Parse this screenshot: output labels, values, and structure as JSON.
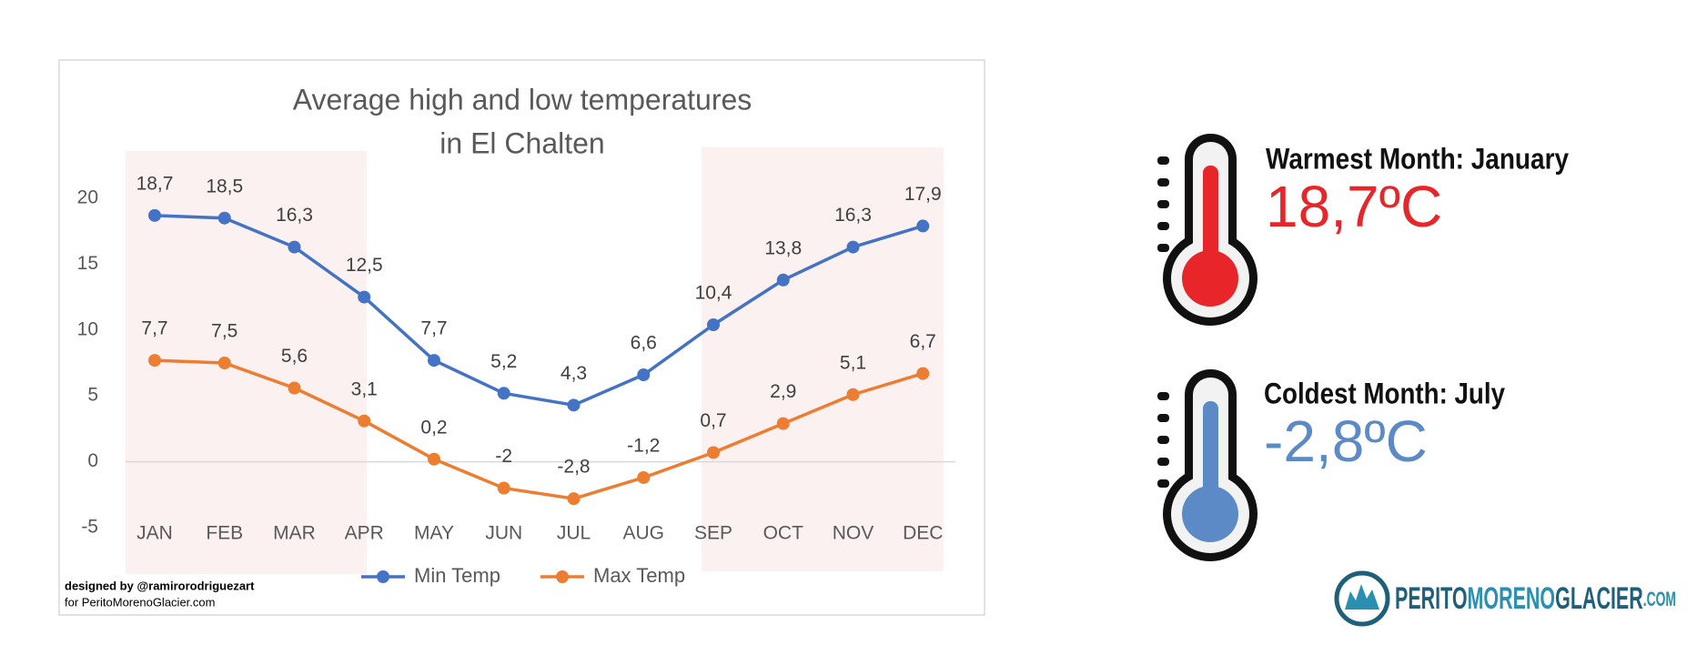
{
  "chart_data": {
    "type": "line",
    "title": [
      "Average high and low temperatures",
      "in El Chalten"
    ],
    "categories": [
      "JAN",
      "FEB",
      "MAR",
      "APR",
      "MAY",
      "JUN",
      "JUL",
      "AUG",
      "SEP",
      "OCT",
      "NOV",
      "DEC"
    ],
    "series": [
      {
        "name": "Min Temp",
        "color": "#4472c4",
        "values": [
          18.7,
          18.5,
          16.3,
          12.5,
          7.7,
          5.2,
          4.3,
          6.6,
          10.4,
          13.8,
          16.3,
          17.9
        ],
        "value_labels": [
          "18,7",
          "18,5",
          "16,3",
          "12,5",
          "7,7",
          "5,2",
          "4,3",
          "6,6",
          "10,4",
          "13,8",
          "16,3",
          "17,9"
        ]
      },
      {
        "name": "Max Temp",
        "color": "#ed7d31",
        "values": [
          7.7,
          7.5,
          5.6,
          3.1,
          0.2,
          -2,
          -2.8,
          -1.2,
          0.7,
          2.9,
          5.1,
          6.7
        ],
        "value_labels": [
          "7,7",
          "7,5",
          "5,6",
          "3,1",
          "0,2",
          "-2",
          "-2,8",
          "-1,2",
          "0,7",
          "2,9",
          "5,1",
          "6,7"
        ]
      }
    ],
    "ylim": [
      -5,
      20
    ],
    "yticks": [
      -5,
      0,
      5,
      10,
      15,
      20
    ],
    "grid": false,
    "legend": "bottom",
    "credits": [
      "designed by @ramirorodriguezart",
      "for PeritoMorenoGlacier.com"
    ]
  },
  "warmest": {
    "label": "Warmest Month: January",
    "value": "18,7ºC"
  },
  "coldest": {
    "label": "Coldest Month: July",
    "value": "-2,8ºC"
  },
  "logo": [
    "PERITO",
    "MORENO",
    "GLACIER",
    ".COM"
  ]
}
